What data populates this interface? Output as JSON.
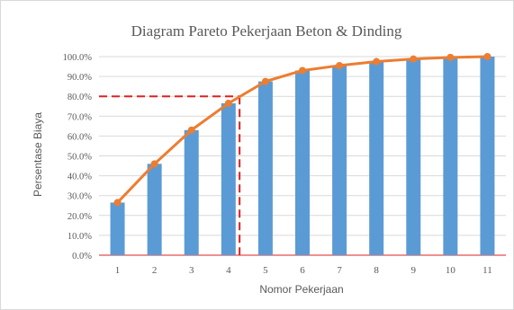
{
  "chart_data": {
    "type": "bar+line",
    "title": "Diagram Pareto Pekerjaan Beton & Dinding",
    "xlabel": "Nomor Pekerjaan",
    "ylabel": "Persentase Biaya",
    "categories": [
      "1",
      "2",
      "3",
      "4",
      "5",
      "6",
      "7",
      "8",
      "9",
      "10",
      "11"
    ],
    "series": [
      {
        "values": [
          26.5,
          46.0,
          63.0,
          76.5,
          87.5,
          93.0,
          95.5,
          97.5,
          98.8,
          99.6,
          100.0
        ]
      },
      {
        "values": [
          26.5,
          46.0,
          63.0,
          76.5,
          87.5,
          93.0,
          95.5,
          97.5,
          98.8,
          99.6,
          100.0
        ]
      }
    ],
    "ylim": [
      0,
      100
    ],
    "yticks": [
      "0.0%",
      "10.0%",
      "20.0%",
      "30.0%",
      "40.0%",
      "50.0%",
      "60.0%",
      "70.0%",
      "80.0%",
      "90.0%",
      "100.0%"
    ],
    "grid": true,
    "reference_line": {
      "y": 80,
      "x": 4.3
    },
    "colors": {
      "bar": "#5b9bd5",
      "line": "#ed7d31",
      "reference": "#e02020",
      "grid": "#d9d9d9"
    }
  }
}
